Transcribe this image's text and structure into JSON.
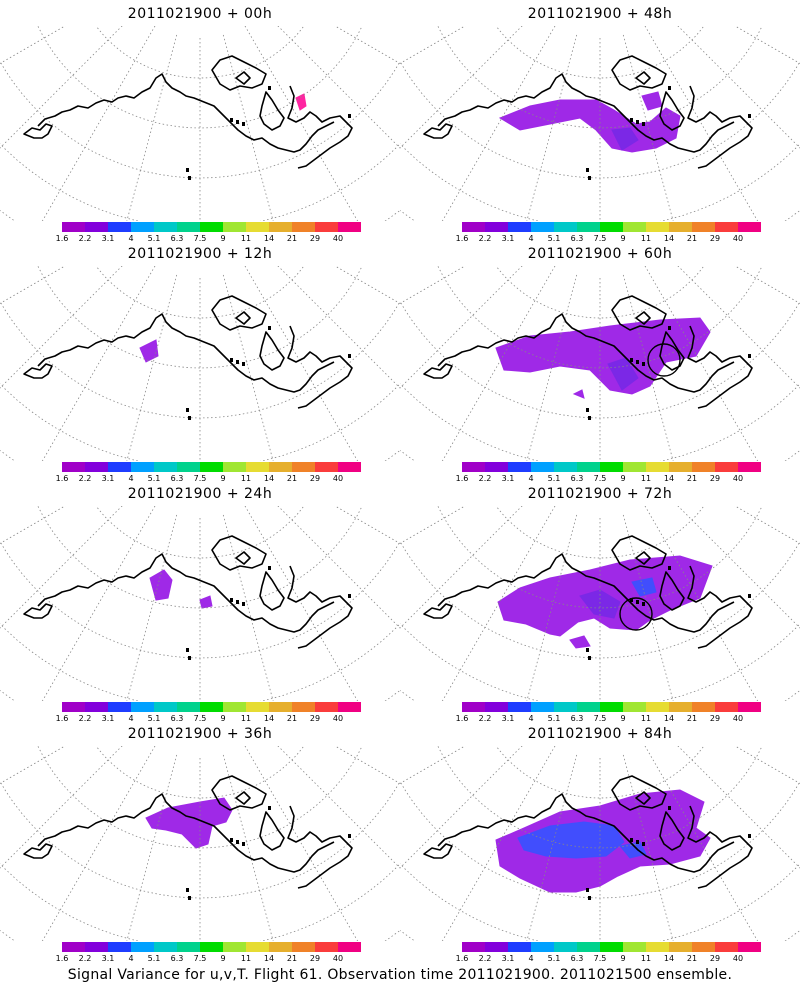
{
  "panels": [
    {
      "title": "2011021900 + 00h",
      "lead_hours": 0
    },
    {
      "title": "2011021900 + 48h",
      "lead_hours": 48
    },
    {
      "title": "2011021900 + 12h",
      "lead_hours": 12
    },
    {
      "title": "2011021900 + 60h",
      "lead_hours": 60
    },
    {
      "title": "2011021900 + 24h",
      "lead_hours": 24
    },
    {
      "title": "2011021900 + 72h",
      "lead_hours": 72
    },
    {
      "title": "2011021900 + 36h",
      "lead_hours": 36
    },
    {
      "title": "2011021900 + 84h",
      "lead_hours": 84
    }
  ],
  "colorbar": {
    "labels": [
      "1.6",
      "2.2",
      "3.1",
      "4",
      "5.1",
      "6.3",
      "7.5",
      "9",
      "11",
      "14",
      "21",
      "29",
      "40"
    ],
    "colors": [
      "#a000c8",
      "#8200dc",
      "#1e3cff",
      "#00a0ff",
      "#00c8c8",
      "#00d28c",
      "#00dc00",
      "#a0e632",
      "#e6dc32",
      "#e6af2d",
      "#f08228",
      "#fa3c3c",
      "#f00082"
    ]
  },
  "map": {
    "coast_color": "#000000",
    "grid_color": "#888888",
    "variance_colors": {
      "low": "#9a1ee6",
      "mid": "#7a28e6",
      "high": "#3c50ff",
      "spot": "#ff1a9c"
    }
  },
  "caption": "Signal Variance for u,v,T. Flight 61. Observation time 2011021900. 2011021500 ensemble."
}
